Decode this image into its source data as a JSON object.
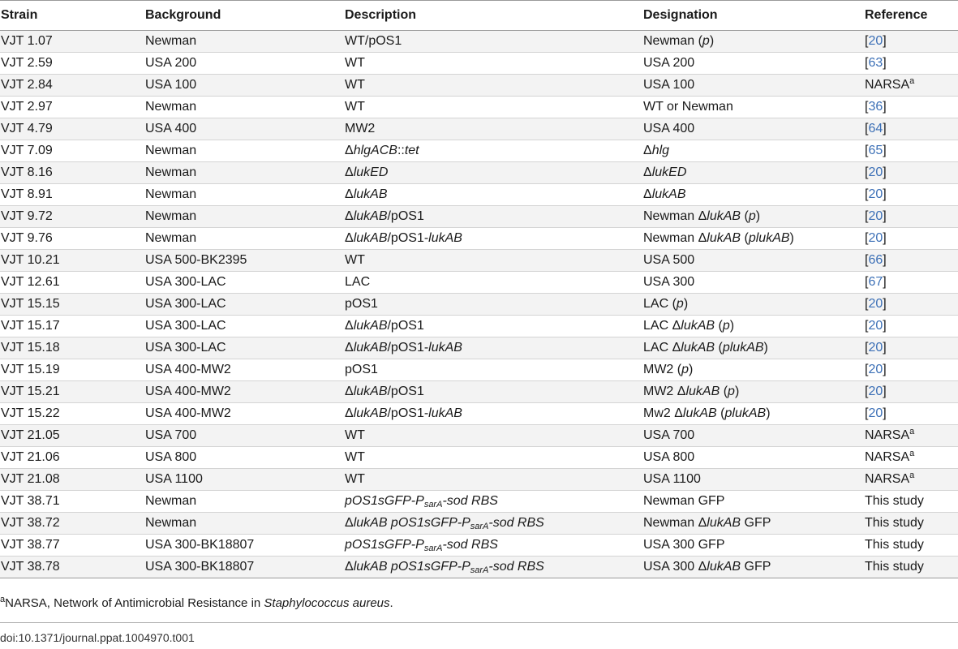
{
  "headers": {
    "strain": "Strain",
    "background": "Background",
    "description": "Description",
    "designation": "Designation",
    "reference": "Reference"
  },
  "rows": [
    {
      "strain": "VJT 1.07",
      "background": "Newman",
      "description": [
        {
          "t": "WT/pOS1"
        }
      ],
      "designation": [
        {
          "t": "Newman ("
        },
        {
          "t": "p",
          "i": true
        },
        {
          "t": ")"
        }
      ],
      "reference": {
        "type": "link",
        "num": "20"
      }
    },
    {
      "strain": "VJT 2.59",
      "background": "USA 200",
      "description": [
        {
          "t": "WT"
        }
      ],
      "designation": [
        {
          "t": "USA 200"
        }
      ],
      "reference": {
        "type": "link",
        "num": "63"
      }
    },
    {
      "strain": "VJT 2.84",
      "background": "USA 100",
      "description": [
        {
          "t": "WT"
        }
      ],
      "designation": [
        {
          "t": "USA 100"
        }
      ],
      "reference": {
        "type": "text",
        "text": "NARSA",
        "sup": "a"
      }
    },
    {
      "strain": "VJT 2.97",
      "background": "Newman",
      "description": [
        {
          "t": "WT"
        }
      ],
      "designation": [
        {
          "t": "WT or Newman"
        }
      ],
      "reference": {
        "type": "link",
        "num": "36"
      }
    },
    {
      "strain": "VJT 4.79",
      "background": "USA 400",
      "description": [
        {
          "t": "MW2"
        }
      ],
      "designation": [
        {
          "t": "USA 400"
        }
      ],
      "reference": {
        "type": "link",
        "num": "64"
      }
    },
    {
      "strain": "VJT 7.09",
      "background": "Newman",
      "description": [
        {
          "t": "Δ"
        },
        {
          "t": "hlgACB",
          "i": true
        },
        {
          "t": "::"
        },
        {
          "t": "tet",
          "i": true
        }
      ],
      "designation": [
        {
          "t": "Δ"
        },
        {
          "t": "hlg",
          "i": true
        }
      ],
      "reference": {
        "type": "link",
        "num": "65"
      }
    },
    {
      "strain": "VJT 8.16",
      "background": "Newman",
      "description": [
        {
          "t": "Δ"
        },
        {
          "t": "lukED",
          "i": true
        }
      ],
      "designation": [
        {
          "t": "Δ"
        },
        {
          "t": "lukED",
          "i": true
        }
      ],
      "reference": {
        "type": "link",
        "num": "20"
      }
    },
    {
      "strain": "VJT 8.91",
      "background": "Newman",
      "description": [
        {
          "t": "Δ"
        },
        {
          "t": "lukAB",
          "i": true
        }
      ],
      "designation": [
        {
          "t": "Δ"
        },
        {
          "t": "lukAB",
          "i": true
        }
      ],
      "reference": {
        "type": "link",
        "num": "20"
      }
    },
    {
      "strain": "VJT 9.72",
      "background": "Newman",
      "description": [
        {
          "t": "Δ"
        },
        {
          "t": "lukAB",
          "i": true
        },
        {
          "t": "/pOS1"
        }
      ],
      "designation": [
        {
          "t": "Newman Δ"
        },
        {
          "t": "lukAB",
          "i": true
        },
        {
          "t": " ("
        },
        {
          "t": "p",
          "i": true
        },
        {
          "t": ")"
        }
      ],
      "reference": {
        "type": "link",
        "num": "20"
      }
    },
    {
      "strain": "VJT 9.76",
      "background": "Newman",
      "description": [
        {
          "t": "Δ"
        },
        {
          "t": "lukAB",
          "i": true
        },
        {
          "t": "/pOS1-"
        },
        {
          "t": "lukAB",
          "i": true
        }
      ],
      "designation": [
        {
          "t": "Newman Δ"
        },
        {
          "t": "lukAB",
          "i": true
        },
        {
          "t": " ("
        },
        {
          "t": "plukAB",
          "i": true
        },
        {
          "t": ")"
        }
      ],
      "reference": {
        "type": "link",
        "num": "20"
      }
    },
    {
      "strain": "VJT 10.21",
      "background": "USA 500-BK2395",
      "description": [
        {
          "t": "WT"
        }
      ],
      "designation": [
        {
          "t": "USA 500"
        }
      ],
      "reference": {
        "type": "link",
        "num": "66"
      }
    },
    {
      "strain": "VJT 12.61",
      "background": "USA 300-LAC",
      "description": [
        {
          "t": "LAC"
        }
      ],
      "designation": [
        {
          "t": "USA 300"
        }
      ],
      "reference": {
        "type": "link",
        "num": "67"
      }
    },
    {
      "strain": "VJT 15.15",
      "background": "USA 300-LAC",
      "description": [
        {
          "t": "pOS1"
        }
      ],
      "designation": [
        {
          "t": "LAC ("
        },
        {
          "t": "p",
          "i": true
        },
        {
          "t": ")"
        }
      ],
      "reference": {
        "type": "link",
        "num": "20"
      }
    },
    {
      "strain": "VJT 15.17",
      "background": "USA 300-LAC",
      "description": [
        {
          "t": "Δ"
        },
        {
          "t": "lukAB",
          "i": true
        },
        {
          "t": "/pOS1"
        }
      ],
      "designation": [
        {
          "t": "LAC Δ"
        },
        {
          "t": "lukAB",
          "i": true
        },
        {
          "t": " ("
        },
        {
          "t": "p",
          "i": true
        },
        {
          "t": ")"
        }
      ],
      "reference": {
        "type": "link",
        "num": "20"
      }
    },
    {
      "strain": "VJT 15.18",
      "background": "USA 300-LAC",
      "description": [
        {
          "t": "Δ"
        },
        {
          "t": "lukAB",
          "i": true
        },
        {
          "t": "/pOS1-"
        },
        {
          "t": "lukAB",
          "i": true
        }
      ],
      "designation": [
        {
          "t": "LAC Δ"
        },
        {
          "t": "lukAB",
          "i": true
        },
        {
          "t": " ("
        },
        {
          "t": "plukAB",
          "i": true
        },
        {
          "t": ")"
        }
      ],
      "reference": {
        "type": "link",
        "num": "20"
      }
    },
    {
      "strain": "VJT 15.19",
      "background": "USA 400-MW2",
      "description": [
        {
          "t": "pOS1"
        }
      ],
      "designation": [
        {
          "t": "MW2 ("
        },
        {
          "t": "p",
          "i": true
        },
        {
          "t": ")"
        }
      ],
      "reference": {
        "type": "link",
        "num": "20"
      }
    },
    {
      "strain": "VJT 15.21",
      "background": "USA 400-MW2",
      "description": [
        {
          "t": "Δ"
        },
        {
          "t": "lukAB",
          "i": true
        },
        {
          "t": "/pOS1"
        }
      ],
      "designation": [
        {
          "t": "MW2 Δ"
        },
        {
          "t": "lukAB",
          "i": true
        },
        {
          "t": " ("
        },
        {
          "t": "p",
          "i": true
        },
        {
          "t": ")"
        }
      ],
      "reference": {
        "type": "link",
        "num": "20"
      }
    },
    {
      "strain": "VJT 15.22",
      "background": "USA 400-MW2",
      "description": [
        {
          "t": "Δ"
        },
        {
          "t": "lukAB",
          "i": true
        },
        {
          "t": "/pOS1-"
        },
        {
          "t": "lukAB",
          "i": true
        }
      ],
      "designation": [
        {
          "t": "Mw2 Δ"
        },
        {
          "t": "lukAB",
          "i": true
        },
        {
          "t": " ("
        },
        {
          "t": "plukAB",
          "i": true
        },
        {
          "t": ")"
        }
      ],
      "reference": {
        "type": "link",
        "num": "20"
      }
    },
    {
      "strain": "VJT 21.05",
      "background": "USA 700",
      "description": [
        {
          "t": "WT"
        }
      ],
      "designation": [
        {
          "t": "USA 700"
        }
      ],
      "reference": {
        "type": "text",
        "text": "NARSA",
        "sup": "a"
      }
    },
    {
      "strain": "VJT 21.06",
      "background": "USA 800",
      "description": [
        {
          "t": "WT"
        }
      ],
      "designation": [
        {
          "t": "USA 800"
        }
      ],
      "reference": {
        "type": "text",
        "text": "NARSA",
        "sup": "a"
      }
    },
    {
      "strain": "VJT 21.08",
      "background": "USA 1100",
      "description": [
        {
          "t": "WT"
        }
      ],
      "designation": [
        {
          "t": "USA 1100"
        }
      ],
      "reference": {
        "type": "text",
        "text": "NARSA",
        "sup": "a"
      }
    },
    {
      "strain": "VJT 38.71",
      "background": "Newman",
      "description": [
        {
          "t": "pOS1sGFP-P",
          "i": true
        },
        {
          "t": "sarA",
          "i": true,
          "sub": true
        },
        {
          "t": "-sod RBS",
          "i": true
        }
      ],
      "designation": [
        {
          "t": "Newman GFP"
        }
      ],
      "reference": {
        "type": "text",
        "text": "This study"
      }
    },
    {
      "strain": "VJT 38.72",
      "background": "Newman",
      "description": [
        {
          "t": "Δ"
        },
        {
          "t": "lukAB pOS1sGFP-P",
          "i": true
        },
        {
          "t": "sarA",
          "i": true,
          "sub": true
        },
        {
          "t": "-sod RBS",
          "i": true
        }
      ],
      "designation": [
        {
          "t": "Newman Δ"
        },
        {
          "t": "lukAB",
          "i": true
        },
        {
          "t": " GFP"
        }
      ],
      "reference": {
        "type": "text",
        "text": "This study"
      }
    },
    {
      "strain": "VJT 38.77",
      "background": "USA 300-BK18807",
      "description": [
        {
          "t": "pOS1sGFP-P",
          "i": true
        },
        {
          "t": "sarA",
          "i": true,
          "sub": true
        },
        {
          "t": "-sod RBS",
          "i": true
        }
      ],
      "designation": [
        {
          "t": "USA 300 GFP"
        }
      ],
      "reference": {
        "type": "text",
        "text": "This study"
      }
    },
    {
      "strain": "VJT 38.78",
      "background": "USA 300-BK18807",
      "description": [
        {
          "t": "Δ"
        },
        {
          "t": "lukAB pOS1sGFP-P",
          "i": true
        },
        {
          "t": "sarA",
          "i": true,
          "sub": true
        },
        {
          "t": "-sod RBS",
          "i": true
        }
      ],
      "designation": [
        {
          "t": "USA 300 Δ"
        },
        {
          "t": "lukAB",
          "i": true
        },
        {
          "t": " GFP"
        }
      ],
      "reference": {
        "type": "text",
        "text": "This study"
      }
    }
  ],
  "footnote": {
    "marker": "a",
    "text_before": "NARSA, Network of Antimicrobial Resistance in ",
    "italic": "Staphylococcus aureus",
    "text_after": "."
  },
  "doi": "doi:10.1371/journal.ppat.1004970.t001",
  "colors": {
    "link": "#3b6fb6",
    "row_shade": "#f3f3f3"
  }
}
